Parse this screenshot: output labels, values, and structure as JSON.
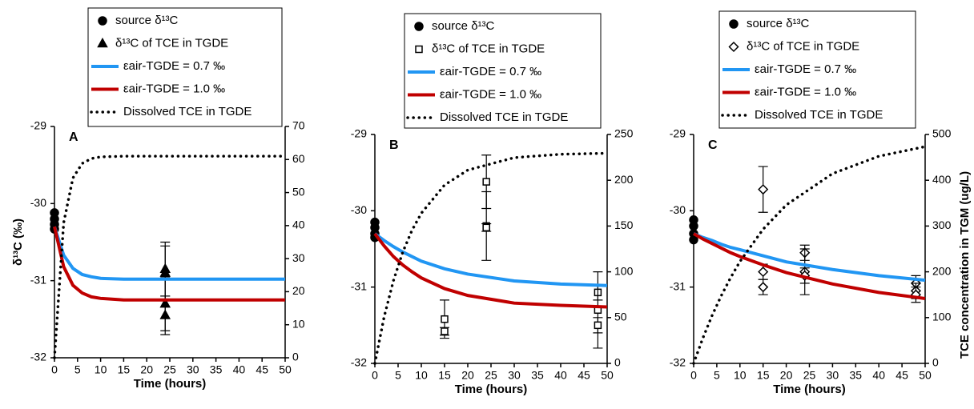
{
  "chart_data": [
    {
      "type": "line",
      "label": "A",
      "xlabel": "Time (hours)",
      "ylabel": "δ¹³C (‰)",
      "xlim": [
        0,
        50
      ],
      "xticks": [
        0,
        5,
        10,
        15,
        20,
        25,
        30,
        35,
        40,
        45,
        50
      ],
      "ylim": [
        -32,
        -29
      ],
      "yticks": [
        -32,
        -31,
        -30,
        -29
      ],
      "y2lim": [
        0,
        70
      ],
      "y2ticks": [
        0,
        10,
        20,
        30,
        40,
        50,
        60,
        70
      ],
      "series": [
        {
          "name": "source δ¹³C",
          "marker": "circle",
          "color": "#000000",
          "x": [
            0,
            0,
            0,
            0
          ],
          "values": [
            -30.12,
            -30.2,
            -30.27,
            -30.33
          ]
        },
        {
          "name": "δ¹³C of TCE in TGDE",
          "marker": "triangle",
          "color": "#000000",
          "x": [
            24,
            24,
            24,
            24
          ],
          "values": [
            -30.85,
            -30.9,
            -31.3,
            -31.45
          ],
          "errors": [
            0.35,
            0.35,
            0.35,
            0.25
          ]
        },
        {
          "name": "εair-TGDE = 0.7 ‰",
          "style": "solid",
          "color": "#2196f3",
          "x": [
            0,
            2,
            4,
            6,
            8,
            10,
            15,
            20,
            30,
            40,
            50
          ],
          "values": [
            -30.3,
            -30.67,
            -30.84,
            -30.92,
            -30.95,
            -30.97,
            -30.98,
            -30.98,
            -30.98,
            -30.98,
            -30.98
          ]
        },
        {
          "name": "εair-TGDE = 1.0 ‰",
          "style": "solid",
          "color": "#c00000",
          "x": [
            0,
            2,
            4,
            6,
            8,
            10,
            15,
            20,
            30,
            40,
            50
          ],
          "values": [
            -30.3,
            -30.82,
            -31.06,
            -31.16,
            -31.21,
            -31.23,
            -31.25,
            -31.25,
            -31.25,
            -31.25,
            -31.25
          ]
        },
        {
          "name": "Dissolved TCE in TGDE",
          "style": "dotted",
          "color": "#000000",
          "axis": "y2",
          "x": [
            0,
            2,
            4,
            6,
            8,
            10,
            15,
            20,
            30,
            40,
            50
          ],
          "values": [
            0,
            40.9,
            54.4,
            58.8,
            60.3,
            60.8,
            61,
            61,
            61,
            61,
            61
          ]
        }
      ]
    },
    {
      "type": "line",
      "label": "B",
      "xlabel": "Time (hours)",
      "xlim": [
        0,
        50
      ],
      "xticks": [
        0,
        5,
        10,
        15,
        20,
        25,
        30,
        35,
        40,
        45,
        50
      ],
      "ylim": [
        -32,
        -29
      ],
      "yticks": [
        -32,
        -31,
        -30,
        -29
      ],
      "y2lim": [
        0,
        250
      ],
      "y2ticks": [
        0,
        50,
        100,
        150,
        200,
        250
      ],
      "series": [
        {
          "name": "source δ¹³C",
          "marker": "circle",
          "color": "#000000",
          "x": [
            0,
            0,
            0,
            0
          ],
          "values": [
            -30.15,
            -30.22,
            -30.3,
            -30.35
          ]
        },
        {
          "name": "δ¹³C of TCE in TGDE",
          "marker": "square",
          "color": "#000000",
          "x": [
            15,
            15,
            24,
            24,
            24,
            48,
            48,
            48
          ],
          "values": [
            -31.42,
            -31.58,
            -29.62,
            -30.2,
            -30.22,
            -31.07,
            -31.3,
            -31.5
          ],
          "errors": [
            0.25,
            0.05,
            0.35,
            0.45,
            0.05,
            0.1,
            0.5,
            0.1
          ]
        },
        {
          "name": "εair-TGDE = 0.7 ‰",
          "style": "solid",
          "color": "#2196f3",
          "x": [
            0,
            2,
            4,
            6,
            8,
            10,
            15,
            20,
            30,
            40,
            50
          ],
          "values": [
            -30.3,
            -30.39,
            -30.47,
            -30.54,
            -30.6,
            -30.66,
            -30.76,
            -30.83,
            -30.92,
            -30.96,
            -30.98
          ]
        },
        {
          "name": "εair-TGDE = 1.0 ‰",
          "style": "solid",
          "color": "#c00000",
          "x": [
            0,
            2,
            4,
            6,
            8,
            10,
            15,
            20,
            30,
            40,
            50
          ],
          "values": [
            -30.3,
            -30.46,
            -30.6,
            -30.71,
            -30.8,
            -30.88,
            -31.02,
            -31.11,
            -31.21,
            -31.24,
            -31.26
          ]
        },
        {
          "name": "Dissolved TCE in TGDE",
          "style": "dotted",
          "color": "#000000",
          "axis": "y2",
          "x": [
            0,
            2,
            4,
            6,
            8,
            10,
            15,
            20,
            30,
            40,
            50
          ],
          "values": [
            0,
            50.9,
            90.4,
            121.4,
            145.4,
            164,
            194.8,
            211.1,
            224.7,
            228.4,
            229.5
          ]
        }
      ]
    },
    {
      "type": "line",
      "label": "C",
      "xlabel": "Time (hours)",
      "y2label": "TCE concentration in TGM (ug/L)",
      "xlim": [
        0,
        50
      ],
      "xticks": [
        0,
        5,
        10,
        15,
        20,
        25,
        30,
        35,
        40,
        45,
        50
      ],
      "ylim": [
        -32,
        -29
      ],
      "yticks": [
        -32,
        -31,
        -30,
        -29
      ],
      "y2lim": [
        0,
        500
      ],
      "y2ticks": [
        0,
        100,
        200,
        300,
        400,
        500
      ],
      "series": [
        {
          "name": "source δ¹³C",
          "marker": "circle",
          "color": "#000000",
          "x": [
            0,
            0,
            0,
            0
          ],
          "values": [
            -30.12,
            -30.2,
            -30.3,
            -30.38
          ]
        },
        {
          "name": "δ¹³C of TCE in TGDE",
          "marker": "diamond",
          "color": "#000000",
          "x": [
            15,
            15,
            15,
            24,
            24,
            24,
            48,
            48,
            48
          ],
          "values": [
            -29.72,
            -30.8,
            -31.0,
            -30.55,
            -30.8,
            -30.85,
            -30.95,
            -31.05,
            -31.1
          ],
          "errors": [
            0.3,
            0.1,
            0.1,
            0.1,
            0.3,
            0.1,
            0.1,
            0.1,
            0.1
          ]
        },
        {
          "name": "εair-TGDE = 0.7 ‰",
          "style": "solid",
          "color": "#2196f3",
          "x": [
            0,
            2,
            4,
            6,
            8,
            10,
            15,
            20,
            30,
            40,
            50
          ],
          "values": [
            -30.3,
            -30.35,
            -30.39,
            -30.44,
            -30.48,
            -30.51,
            -30.59,
            -30.67,
            -30.77,
            -30.85,
            -30.91
          ]
        },
        {
          "name": "εair-TGDE = 1.0 ‰",
          "style": "solid",
          "color": "#c00000",
          "x": [
            0,
            2,
            4,
            6,
            8,
            10,
            15,
            20,
            30,
            40,
            50
          ],
          "values": [
            -30.3,
            -30.37,
            -30.43,
            -30.49,
            -30.55,
            -30.6,
            -30.71,
            -30.81,
            -30.96,
            -31.07,
            -31.15
          ]
        },
        {
          "name": "Dissolved TCE in TGDE",
          "style": "dotted",
          "color": "#000000",
          "axis": "y2",
          "x": [
            0,
            2,
            4,
            6,
            8,
            10,
            15,
            20,
            30,
            40,
            50
          ],
          "values": [
            0,
            55.5,
            105,
            148.5,
            187.5,
            222.5,
            293,
            346,
            414.5,
            452.5,
            473.5
          ]
        }
      ]
    }
  ]
}
